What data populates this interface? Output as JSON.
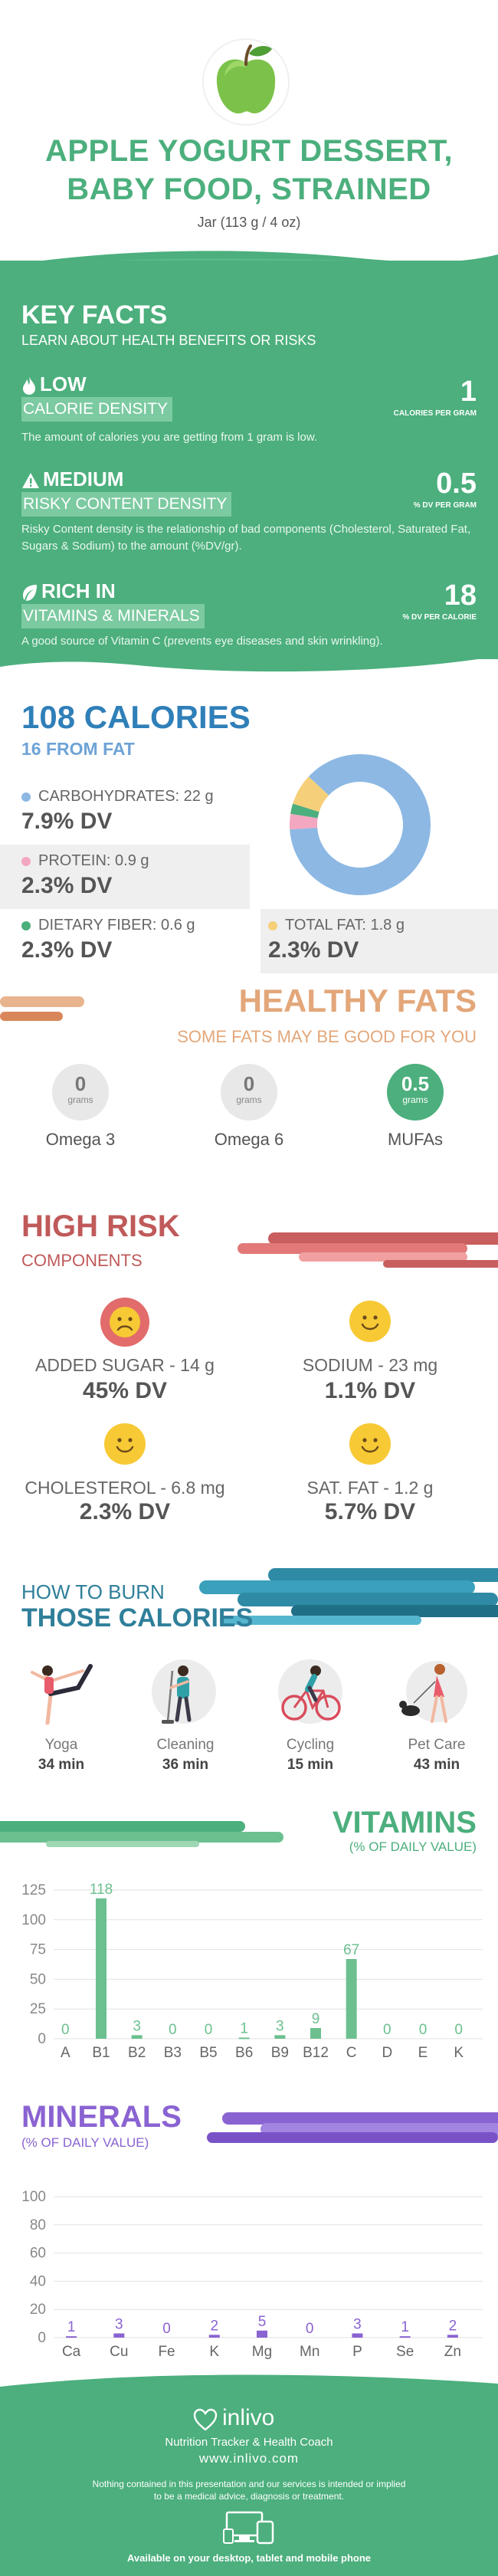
{
  "header": {
    "title_line1": "APPLE YOGURT DESSERT,",
    "title_line2": "BABY FOOD, STRAINED",
    "serving": "Jar (113 g / 4 oz)"
  },
  "key_facts": {
    "title": "KEY FACTS",
    "subtitle": "LEARN ABOUT HEALTH BENEFITS OR RISKS",
    "facts": [
      {
        "level": "LOW",
        "name": "CALORIE DENSITY",
        "value": "1",
        "unit": "CALORIES PER GRAM",
        "desc": "The amount of calories you are getting from 1 gram is low.",
        "icon": "flame-icon"
      },
      {
        "level": "MEDIUM",
        "name": "RISKY CONTENT DENSITY",
        "value": "0.5",
        "unit": "% DV PER GRAM",
        "desc": "Risky Content density is the relationship of bad components (Cholesterol, Saturated Fat, Sugars & Sodium) to the amount (%DV/gr).",
        "icon": "warning-icon"
      },
      {
        "level": "RICH  IN",
        "name": "VITAMINS & MINERALS",
        "value": "18",
        "unit": "% DV PER CALORIE",
        "desc": "A good source of Vitamin C (prevents eye diseases and skin wrinkling).",
        "icon": "leaf-icon"
      }
    ]
  },
  "calories": {
    "title": "108 CALORIES",
    "subtitle": "16 FROM FAT",
    "nutrients": [
      {
        "label": "CARBOHYDRATES: 22 g",
        "dv": "7.9% DV",
        "color": "#8db8e4"
      },
      {
        "label": "PROTEIN: 0.9 g",
        "dv": "2.3% DV",
        "color": "#f4a7c0"
      },
      {
        "label": "DIETARY FIBER: 0.6 g",
        "dv": "2.3% DV",
        "color": "#4caf7d"
      },
      {
        "label": "TOTAL FAT: 1.8 g",
        "dv": "2.3% DV",
        "color": "#f6cf7a"
      }
    ]
  },
  "donut": {
    "segments": [
      {
        "name": "carbohydrates",
        "value": 22,
        "color": "#8db8e4"
      },
      {
        "name": "protein",
        "value": 0.9,
        "color": "#f4a7c0"
      },
      {
        "name": "fiber",
        "value": 0.6,
        "color": "#4caf7d"
      },
      {
        "name": "fat",
        "value": 1.8,
        "color": "#f6cf7a"
      }
    ]
  },
  "healthy_fats": {
    "title": "HEALTHY FATS",
    "subtitle": "SOME FATS MAY BE GOOD FOR YOU",
    "unit": "grams",
    "items": [
      {
        "label": "Omega 3",
        "value": "0"
      },
      {
        "label": "Omega 6",
        "value": "0"
      },
      {
        "label": "MUFAs",
        "value": "0.5"
      }
    ]
  },
  "high_risk": {
    "title": "HIGH RISK",
    "subtitle": "COMPONENTS",
    "items": [
      {
        "label": "ADDED SUGAR - 14 g",
        "dv": "45% DV",
        "mood": "sad"
      },
      {
        "label": "SODIUM - 23 mg",
        "dv": "1.1% DV",
        "mood": "happy"
      },
      {
        "label": "CHOLESTEROL - 6.8 mg",
        "dv": "2.3% DV",
        "mood": "happy"
      },
      {
        "label": "SAT. FAT - 1.2 g",
        "dv": "5.7% DV",
        "mood": "happy"
      }
    ]
  },
  "burn": {
    "title_line1": "HOW TO BURN",
    "title_line2": "THOSE CALORIES",
    "activities": [
      {
        "label": "Yoga",
        "minutes": "34 min",
        "icon": "yoga-icon"
      },
      {
        "label": "Cleaning",
        "minutes": "36 min",
        "icon": "cleaning-icon"
      },
      {
        "label": "Cycling",
        "minutes": "15 min",
        "icon": "cycling-icon"
      },
      {
        "label": "Pet Care",
        "minutes": "43 min",
        "icon": "pet-care-icon"
      }
    ]
  },
  "vitamins": {
    "title": "VITAMINS",
    "subtitle": "(% OF DAILY VALUE)"
  },
  "minerals": {
    "title": "MINERALS",
    "subtitle": "(% OF DAILY VALUE)"
  },
  "chart_data": [
    {
      "type": "bar",
      "title": "VITAMINS",
      "categories": [
        "A",
        "B1",
        "B2",
        "B3",
        "B5",
        "B6",
        "B9",
        "B12",
        "C",
        "D",
        "E",
        "K"
      ],
      "values": [
        0,
        118,
        3,
        0,
        0,
        1,
        3,
        9,
        67,
        0,
        0,
        0
      ],
      "yticks": [
        0,
        25,
        50,
        75,
        100,
        125
      ],
      "ylim": [
        0,
        125
      ],
      "grid": true,
      "color": "#6cc08f"
    },
    {
      "type": "bar",
      "title": "MINERALS",
      "categories": [
        "Ca",
        "Cu",
        "Fe",
        "K",
        "Mg",
        "Mn",
        "P",
        "Se",
        "Zn"
      ],
      "values": [
        1,
        3,
        0,
        2,
        5,
        0,
        3,
        1,
        2
      ],
      "yticks": [
        0,
        20,
        40,
        60,
        80,
        100
      ],
      "ylim": [
        0,
        100
      ],
      "grid": true,
      "color": "#8a63d2"
    }
  ],
  "footer": {
    "brand": "inlivo",
    "tagline": "Nutrition Tracker & Health Coach",
    "url": "www.inlivo.com",
    "disclaimer_line1": "Nothing contained in this presentation and our services is intended or implied",
    "disclaimer_line2": "to be a medical advice, diagnosis or treatment.",
    "devices": "Available on your desktop, tablet and mobile phone"
  }
}
